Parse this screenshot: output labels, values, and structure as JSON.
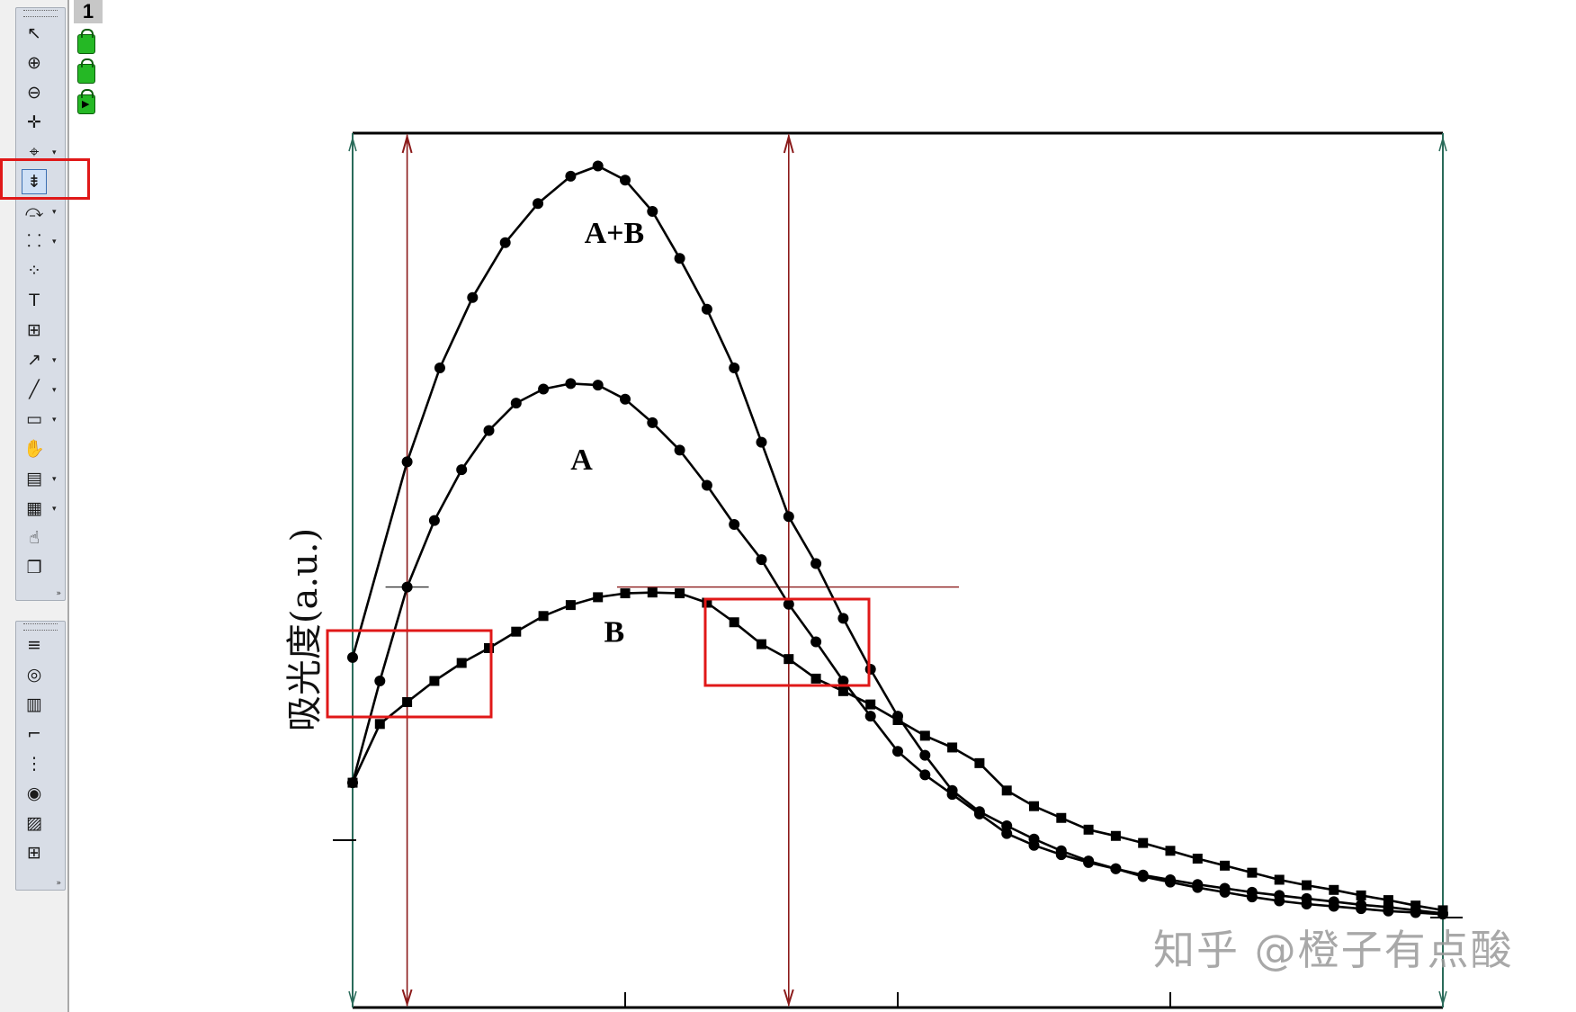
{
  "layer_panel": {
    "layer_number": "1",
    "icons": [
      "lock-icon",
      "lock-icon",
      "lock-play-icon"
    ]
  },
  "toolbar": {
    "tools": [
      {
        "icon": "pointer-icon",
        "glyph": "↖"
      },
      {
        "icon": "zoom-in-icon",
        "glyph": "⊕"
      },
      {
        "icon": "zoom-out-icon",
        "glyph": "⊖"
      },
      {
        "icon": "screen-reader-icon",
        "glyph": "✛"
      },
      {
        "icon": "data-reader-icon",
        "glyph": "⌖"
      },
      {
        "icon": "data-selector-icon",
        "glyph": "⇟"
      },
      {
        "icon": "draw-data-icon",
        "glyph": "⤼"
      },
      {
        "icon": "mask-icon",
        "glyph": "⸬"
      },
      {
        "icon": "region-select-icon",
        "glyph": "⁘"
      },
      {
        "icon": "text-tool-icon",
        "glyph": "T"
      },
      {
        "icon": "add-table-icon",
        "glyph": "⊞"
      },
      {
        "icon": "arrow-tool-icon",
        "glyph": "↗"
      },
      {
        "icon": "line-tool-icon",
        "glyph": "╱"
      },
      {
        "icon": "rectangle-tool-icon",
        "glyph": "▭"
      },
      {
        "icon": "pan-hand-icon",
        "glyph": "✋"
      },
      {
        "icon": "insert-equation-icon",
        "glyph": "▤"
      },
      {
        "icon": "insert-graph-icon",
        "glyph": "▦"
      },
      {
        "icon": "move-hand-icon",
        "glyph": "☝"
      },
      {
        "icon": "layer-stack-icon",
        "glyph": "❐"
      }
    ],
    "tools2": [
      {
        "icon": "color-bars-icon",
        "glyph": "≡"
      },
      {
        "icon": "circle-icon",
        "glyph": "◎"
      },
      {
        "icon": "legend-icon",
        "glyph": "▥"
      },
      {
        "icon": "timestamp-icon",
        "glyph": "⌐"
      },
      {
        "icon": "list-icon",
        "glyph": "⋮"
      },
      {
        "icon": "chart-record-icon",
        "glyph": "◉"
      },
      {
        "icon": "folder-user-icon",
        "glyph": "▨"
      },
      {
        "icon": "grid-table-icon",
        "glyph": "⊞"
      }
    ]
  },
  "watermark": "知乎 @橙子有点酸",
  "colors": {
    "curve": "#000000",
    "cursor_line": "#8b1a1a",
    "highlight": "#e01818",
    "frame": "#2a6b5a"
  },
  "chart_data": {
    "type": "line",
    "title": "",
    "xlabel": "",
    "ylabel": "吸光度(a.u.)",
    "x_ticks_labeled": false,
    "y_ticks_labeled": false,
    "grid": false,
    "xlim": [
      0,
      100
    ],
    "ylim": [
      0,
      100
    ],
    "vertical_cursors_x": [
      5,
      40
    ],
    "intersection_y": 42,
    "series": [
      {
        "name": "A+B",
        "marker": "circle",
        "x": [
          0,
          5,
          8,
          11,
          14,
          17,
          20,
          22.5,
          25,
          27.5,
          30,
          32.5,
          35,
          37.5,
          40,
          42.5,
          45,
          47.5,
          50,
          52.5,
          55,
          57.5,
          60,
          62.5,
          65,
          67.5,
          70,
          72.5,
          75,
          77.5,
          80,
          82.5,
          85,
          87.5,
          90,
          92.5,
          95,
          97.5,
          100
        ],
        "y": [
          33,
          58,
          70,
          79,
          86,
          91,
          94.5,
          95.8,
          94,
          90,
          84,
          77.5,
          70,
          60.5,
          51,
          45,
          38,
          31.5,
          25.5,
          20.5,
          16,
          13.3,
          11.5,
          9.8,
          8.3,
          7,
          6,
          5,
          4.3,
          3.6,
          3,
          2.4,
          1.9,
          1.5,
          1.2,
          0.9,
          0.6,
          0.4,
          0.2
        ]
      },
      {
        "name": "A",
        "marker": "circle",
        "x": [
          0,
          2.5,
          5,
          7.5,
          10,
          12.5,
          15,
          17.5,
          20,
          22.5,
          25,
          27.5,
          30,
          32.5,
          35,
          37.5,
          40,
          42.5,
          45,
          47.5,
          50,
          52.5,
          55,
          57.5,
          60,
          62.5,
          65,
          67.5,
          70,
          72.5,
          75,
          77.5,
          80,
          82.5,
          85,
          87.5,
          90,
          92.5,
          95,
          97.5,
          100
        ],
        "y": [
          17,
          30,
          42,
          50.5,
          57,
          62,
          65.5,
          67.3,
          68,
          67.8,
          66,
          63,
          59.5,
          55,
          50,
          45.5,
          39.8,
          35,
          30,
          25.5,
          21,
          18,
          15.5,
          13,
          10.5,
          9,
          7.8,
          6.8,
          6,
          5.2,
          4.6,
          4,
          3.5,
          3,
          2.6,
          2.2,
          1.8,
          1.4,
          1.1,
          0.7,
          0.3
        ]
      },
      {
        "name": "B",
        "marker": "square",
        "x": [
          0,
          2.5,
          5,
          7.5,
          10,
          12.5,
          15,
          17.5,
          20,
          22.5,
          25,
          27.5,
          30,
          32.5,
          35,
          37.5,
          40,
          42.5,
          45,
          47.5,
          50,
          52.5,
          55,
          57.5,
          60,
          62.5,
          65,
          67.5,
          70,
          72.5,
          75,
          77.5,
          80,
          82.5,
          85,
          87.5,
          90,
          92.5,
          95,
          97.5,
          100
        ],
        "y": [
          17,
          24.5,
          27.3,
          30,
          32.3,
          34.2,
          36.3,
          38.3,
          39.7,
          40.7,
          41.2,
          41.3,
          41.2,
          40,
          37.5,
          34.7,
          32.8,
          30.3,
          28.7,
          27,
          25,
          23,
          21.5,
          19.5,
          16,
          14,
          12.5,
          11,
          10.2,
          9.3,
          8.3,
          7.3,
          6.4,
          5.5,
          4.6,
          3.9,
          3.3,
          2.6,
          2,
          1.3,
          0.7
        ]
      }
    ],
    "labels": [
      {
        "text": "A+B",
        "x": 24,
        "y": 86
      },
      {
        "text": "A",
        "x": 21,
        "y": 57
      },
      {
        "text": "B",
        "x": 24,
        "y": 35
      }
    ]
  }
}
